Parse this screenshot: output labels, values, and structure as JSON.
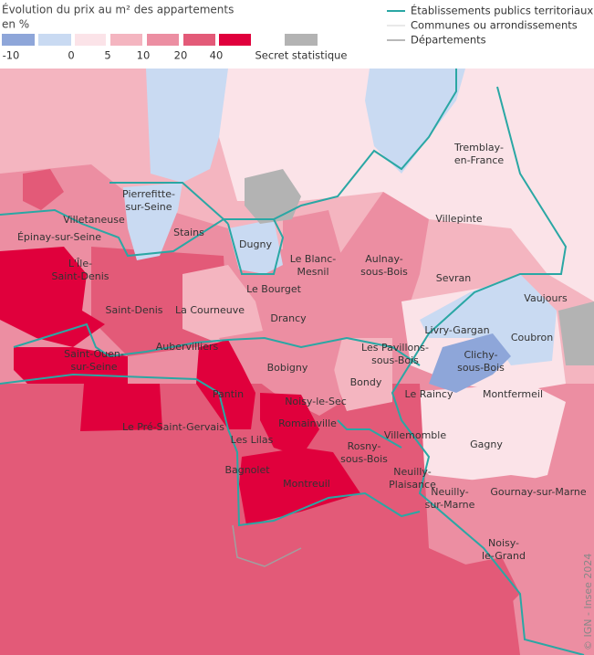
{
  "legend": {
    "title": "Évolution du prix au m² des appartements",
    "unit": "en %",
    "colors": [
      "#8ea6d9",
      "#c9daf2",
      "#fbe3e8",
      "#f4b5c0",
      "#ec8ea2",
      "#e35a78",
      "#e0003c"
    ],
    "ticks": [
      -10,
      0,
      5,
      10,
      20,
      40
    ],
    "secret_color": "#b3b3b3",
    "secret_label": "Secret statistique",
    "lines": [
      {
        "label": "Établissements publics territoriaux",
        "color": "#2aa7a4"
      },
      {
        "label": "Communes ou arrondissements",
        "color": "#e2e2e2"
      },
      {
        "label": "Départements",
        "color": "#a0a0a0"
      }
    ]
  },
  "places": [
    {
      "lines": [
        "Épinay-sur-Seine"
      ]
    },
    {
      "lines": [
        "L'Île-",
        "Saint-Denis"
      ]
    },
    {
      "lines": [
        "Villetaneuse"
      ]
    },
    {
      "lines": [
        "Pierrefitte-",
        "sur-Seine"
      ]
    },
    {
      "lines": [
        "Stains"
      ]
    },
    {
      "lines": [
        "Dugny"
      ]
    },
    {
      "lines": [
        "Le Blanc-",
        "Mesnil"
      ]
    },
    {
      "lines": [
        "Aulnay-",
        "sous-Bois"
      ]
    },
    {
      "lines": [
        "Tremblay-",
        "en-France"
      ]
    },
    {
      "lines": [
        "Villepinte"
      ]
    },
    {
      "lines": [
        "Sevran"
      ]
    },
    {
      "lines": [
        "Vaujours"
      ]
    },
    {
      "lines": [
        "Saint-Denis"
      ]
    },
    {
      "lines": [
        "La Courneuve"
      ]
    },
    {
      "lines": [
        "Le Bourget"
      ]
    },
    {
      "lines": [
        "Drancy"
      ]
    },
    {
      "lines": [
        "Livry-Gargan"
      ]
    },
    {
      "lines": [
        "Coubron"
      ]
    },
    {
      "lines": [
        "Les Pavillons-",
        "sous-Bois"
      ]
    },
    {
      "lines": [
        "Clichy-",
        "sous-Bois"
      ]
    },
    {
      "lines": [
        "Saint-Ouen-",
        "sur-Seine"
      ]
    },
    {
      "lines": [
        "Aubervilliers"
      ]
    },
    {
      "lines": [
        "Bobigny"
      ]
    },
    {
      "lines": [
        "Bondy"
      ]
    },
    {
      "lines": [
        "Le Raincy"
      ]
    },
    {
      "lines": [
        "Montfermeil"
      ]
    },
    {
      "lines": [
        "Pantin"
      ]
    },
    {
      "lines": [
        "Noisy-le-Sec"
      ]
    },
    {
      "lines": [
        "Romainville"
      ]
    },
    {
      "lines": [
        "Le Pré-Saint-Gervais"
      ]
    },
    {
      "lines": [
        "Les Lilas"
      ]
    },
    {
      "lines": [
        "Villemomble"
      ]
    },
    {
      "lines": [
        "Gagny"
      ]
    },
    {
      "lines": [
        "Rosny-",
        "sous-Bois"
      ]
    },
    {
      "lines": [
        "Bagnolet"
      ]
    },
    {
      "lines": [
        "Neuilly-",
        "Plaisance"
      ]
    },
    {
      "lines": [
        "Montreuil"
      ]
    },
    {
      "lines": [
        "Neuilly-",
        "sur-Marne"
      ]
    },
    {
      "lines": [
        "Gournay-sur-Marne"
      ]
    },
    {
      "lines": [
        "Noisy-",
        "le-Grand"
      ]
    }
  ],
  "credit": "© IGN - Insee 2024"
}
